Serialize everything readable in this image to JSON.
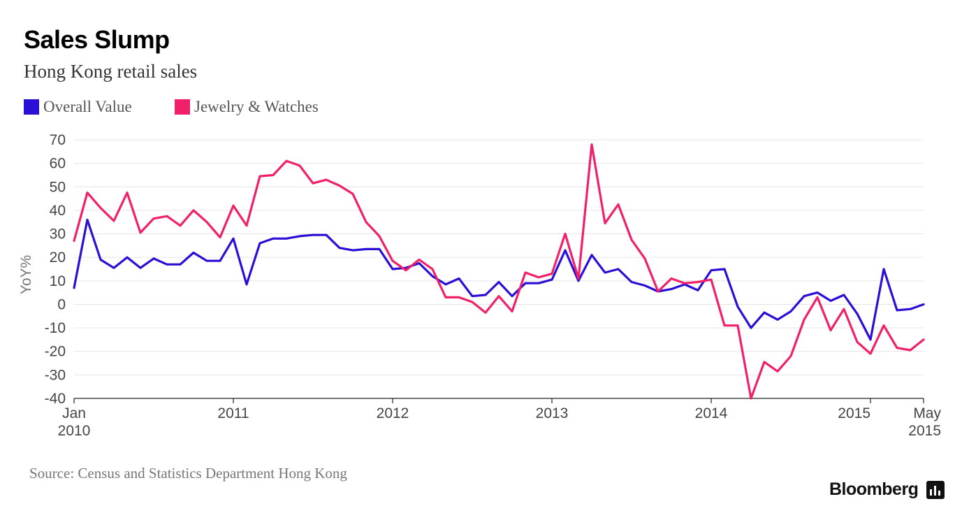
{
  "chart_data": {
    "type": "line",
    "title": "Sales Slump",
    "subtitle": "Hong Kong retail sales",
    "ylabel": "YoY%",
    "ylim": [
      -40,
      70
    ],
    "yticks": [
      70,
      60,
      50,
      40,
      30,
      20,
      10,
      0,
      -10,
      -20,
      -30,
      -40
    ],
    "grid": true,
    "legend_position": "top-left",
    "x_start": "2010-01",
    "x_end": "2015-05",
    "xticks": [
      {
        "index": 0,
        "line1": "Jan",
        "line2": "2010",
        "align": "middle"
      },
      {
        "index": 12,
        "line1": "2011",
        "line2": "",
        "align": "middle"
      },
      {
        "index": 24,
        "line1": "2012",
        "line2": "",
        "align": "middle"
      },
      {
        "index": 36,
        "line1": "2013",
        "line2": "",
        "align": "middle"
      },
      {
        "index": 48,
        "line1": "2014",
        "line2": "",
        "align": "middle"
      },
      {
        "index": 60,
        "line1": "2015",
        "line2": "",
        "align": "end"
      },
      {
        "index": 64,
        "line1": "May",
        "line2": "2015",
        "align": "end"
      }
    ],
    "series": [
      {
        "name": "Overall Value",
        "color": "#2a0fd6",
        "values": [
          7,
          36,
          19,
          15.5,
          20,
          15.5,
          19.5,
          17,
          17,
          22,
          18.5,
          18.5,
          28,
          8.5,
          26,
          28,
          28,
          29,
          29.5,
          29.5,
          24,
          23,
          23.5,
          23.5,
          15,
          15.5,
          17.5,
          12,
          8.5,
          11,
          3.5,
          4,
          9.5,
          3.5,
          9,
          9,
          10.5,
          23,
          10,
          21,
          13.5,
          15,
          9.5,
          8,
          5.5,
          6.5,
          8.5,
          6,
          14.5,
          15,
          -1,
          -10,
          -3.5,
          -6.5,
          -3,
          3.5,
          5,
          1.5,
          4,
          -4,
          -15,
          15,
          -2.5,
          -2,
          0
        ]
      },
      {
        "name": "Jewelry & Watches",
        "color": "#f0206a",
        "values": [
          27,
          47.5,
          41,
          35.5,
          47.5,
          30.5,
          36.5,
          37.5,
          33.5,
          40,
          35,
          28.5,
          42,
          33.5,
          54.5,
          55,
          61,
          59,
          51.5,
          53,
          50.5,
          47,
          35,
          29,
          18.5,
          14.5,
          19,
          15,
          3,
          3,
          1,
          -3.5,
          3.5,
          -3,
          13.5,
          11.5,
          13,
          30,
          11,
          68,
          34.5,
          42.5,
          27.5,
          19.5,
          5.5,
          11,
          9,
          9.5,
          10.5,
          -9,
          -9,
          -40,
          -24.5,
          -28.5,
          -22,
          -6.5,
          3,
          -11,
          -2,
          -16,
          -21,
          -9,
          -18.5,
          -19.5,
          -15
        ]
      }
    ]
  },
  "legend": [
    {
      "label": "Overall Value",
      "color": "#2a0fd6"
    },
    {
      "label": "Jewelry & Watches",
      "color": "#f0206a"
    }
  ],
  "source": "Source: Census and Statistics Department Hong Kong",
  "brand": "Bloomberg"
}
